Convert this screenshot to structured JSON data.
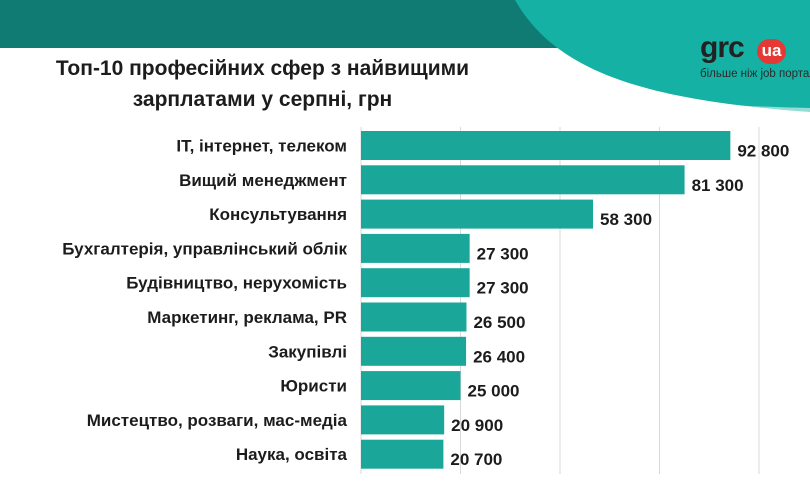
{
  "brand": {
    "word": "grc",
    "badge": "ua",
    "tagline": "більше ніж job портал"
  },
  "colors": {
    "bar": "#1aa799",
    "accent_shape": "#15b1a4",
    "top_band": "#0f7b72",
    "logo_badge": "#e53935"
  },
  "chart_data": {
    "type": "bar",
    "orientation": "horizontal",
    "title_lines": [
      "Топ-10 професійних сфер з найвищими",
      "зарплатами у серпні, грн"
    ],
    "categories": [
      "IT, інтернет, телеком",
      "Вищий менеджмент",
      "Консультування",
      "Бухгалтерія, управлінський облік",
      "Будівництво, нерухомість",
      "Маркетинг, реклама, PR",
      "Закупівлі",
      "Юристи",
      "Мистецтво, розваги, мас-медіа",
      "Наука, освіта"
    ],
    "values": [
      92800,
      81300,
      58300,
      27300,
      27300,
      26500,
      26400,
      25000,
      20900,
      20700
    ],
    "value_labels": [
      "92 800",
      "81 300",
      "58 300",
      "27 300",
      "27 300",
      "26 500",
      "26 400",
      "25 000",
      "20 900",
      "20 700"
    ],
    "xlim": [
      0,
      100000
    ],
    "grid": true,
    "legend": "none"
  }
}
